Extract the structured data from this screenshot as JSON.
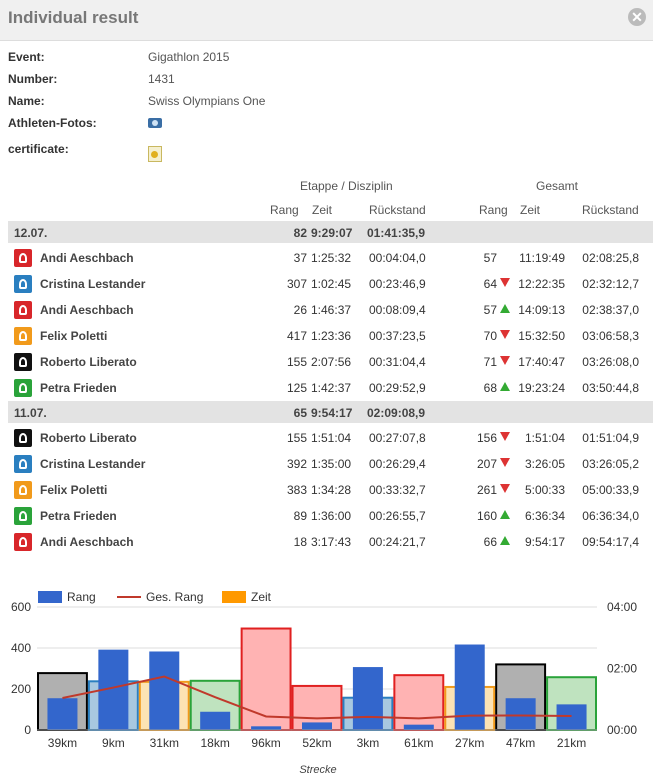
{
  "header": {
    "title": "Individual result",
    "close_glyph": "✕"
  },
  "info": {
    "event_label": "Event:",
    "event_value": "Gigathlon 2015",
    "number_label": "Number:",
    "number_value": "1431",
    "name_label": "Name:",
    "name_value": "Swiss Olympians One",
    "photos_label": "Athleten-Fotos:",
    "certificate_label": "certificate:"
  },
  "table": {
    "group_stage": "Etappe / Disziplin",
    "group_total": "Gesamt",
    "cols": [
      "Rang",
      "Zeit",
      "Rückstand",
      "Rang",
      "Zeit",
      "Rückstand"
    ],
    "days": [
      {
        "date": "12.07.",
        "rank": "82",
        "time": "9:29:07",
        "gap": "01:41:35,9",
        "rows": [
          {
            "disc": "bike",
            "name": "Andi Aeschbach",
            "rank": "37",
            "time": "1:25:32",
            "gap": "00:04:04,0",
            "trank": "57",
            "trend": "none",
            "ttime": "11:19:49",
            "tgap": "02:08:25,8"
          },
          {
            "disc": "swim",
            "name": "Cristina Lestander",
            "rank": "307",
            "time": "1:02:45",
            "gap": "00:23:46,9",
            "trank": "64",
            "trend": "down",
            "ttime": "12:22:35",
            "tgap": "02:32:12,7"
          },
          {
            "disc": "bike",
            "name": "Andi Aeschbach",
            "rank": "26",
            "time": "1:46:37",
            "gap": "00:08:09,4",
            "trank": "57",
            "trend": "up",
            "ttime": "14:09:13",
            "tgap": "02:38:37,0"
          },
          {
            "disc": "run",
            "name": "Felix Poletti",
            "rank": "417",
            "time": "1:23:36",
            "gap": "00:37:23,5",
            "trank": "70",
            "trend": "down",
            "ttime": "15:32:50",
            "tgap": "03:06:58,3"
          },
          {
            "disc": "inl",
            "name": "Roberto Liberato",
            "rank": "155",
            "time": "2:07:56",
            "gap": "00:31:04,4",
            "trank": "71",
            "trend": "down",
            "ttime": "17:40:47",
            "tgap": "03:26:08,0"
          },
          {
            "disc": "walk",
            "name": "Petra Frieden",
            "rank": "125",
            "time": "1:42:37",
            "gap": "00:29:52,9",
            "trank": "68",
            "trend": "up",
            "ttime": "19:23:24",
            "tgap": "03:50:44,8"
          }
        ]
      },
      {
        "date": "11.07.",
        "rank": "65",
        "time": "9:54:17",
        "gap": "02:09:08,9",
        "rows": [
          {
            "disc": "inl",
            "name": "Roberto Liberato",
            "rank": "155",
            "time": "1:51:04",
            "gap": "00:27:07,8",
            "trank": "156",
            "trend": "down",
            "ttime": "1:51:04",
            "tgap": "01:51:04,9"
          },
          {
            "disc": "swim",
            "name": "Cristina Lestander",
            "rank": "392",
            "time": "1:35:00",
            "gap": "00:26:29,4",
            "trank": "207",
            "trend": "down",
            "ttime": "3:26:05",
            "tgap": "03:26:05,2"
          },
          {
            "disc": "run",
            "name": "Felix Poletti",
            "rank": "383",
            "time": "1:34:28",
            "gap": "00:33:32,7",
            "trank": "261",
            "trend": "down",
            "ttime": "5:00:33",
            "tgap": "05:00:33,9"
          },
          {
            "disc": "walk",
            "name": "Petra Frieden",
            "rank": "89",
            "time": "1:36:00",
            "gap": "00:26:55,7",
            "trank": "160",
            "trend": "up",
            "ttime": "6:36:34",
            "tgap": "06:36:34,0"
          },
          {
            "disc": "bike",
            "name": "Andi Aeschbach",
            "rank": "18",
            "time": "3:17:43",
            "gap": "00:24:21,7",
            "trank": "66",
            "trend": "up",
            "ttime": "9:54:17",
            "tgap": "09:54:17,4"
          }
        ]
      }
    ]
  },
  "chart_data": {
    "type": "bar",
    "categories": [
      "39km",
      "9km",
      "31km",
      "18km",
      "96km",
      "52km",
      "3km",
      "61km",
      "27km",
      "47km",
      "21km"
    ],
    "xlabel": "Strecke",
    "ylabel": "",
    "ylim": [
      0,
      600
    ],
    "y_ticks": [
      "0",
      "200",
      "400",
      "600"
    ],
    "y2_ticks": [
      "00:00",
      "02:00",
      "04:00"
    ],
    "legend": {
      "placement": "top-left",
      "items": [
        "Rang",
        "Ges. Rang",
        "Zeit"
      ]
    },
    "series": [
      {
        "name": "Rang",
        "color": "#3366cc",
        "values": [
          155,
          392,
          383,
          89,
          18,
          37,
          307,
          26,
          417,
          155,
          125
        ]
      },
      {
        "name": "Ges. Rang",
        "color": "#c0392b",
        "values": [
          156,
          207,
          261,
          160,
          66,
          57,
          64,
          57,
          70,
          71,
          68
        ]
      },
      {
        "name": "Zeit",
        "color": "#ff9900",
        "values_minutes": [
          111,
          95,
          94,
          96,
          198,
          86,
          63,
          107,
          84,
          128,
          103
        ]
      }
    ],
    "time_bar_colors": {
      "inl": {
        "fill": "#b0b0b0",
        "stroke": "#000000"
      },
      "swim": {
        "fill": "#a8c8e0",
        "stroke": "#2a7fc0"
      },
      "run": {
        "fill": "#fce3b4",
        "stroke": "#f19a1b"
      },
      "walk": {
        "fill": "#bfe3bf",
        "stroke": "#2aa33a"
      },
      "bike": {
        "fill": "#ffb3b3",
        "stroke": "#e02020"
      }
    },
    "time_bar_disciplines": [
      "inl",
      "swim",
      "run",
      "walk",
      "bike",
      "bike",
      "swim",
      "bike",
      "run",
      "inl",
      "walk"
    ]
  }
}
